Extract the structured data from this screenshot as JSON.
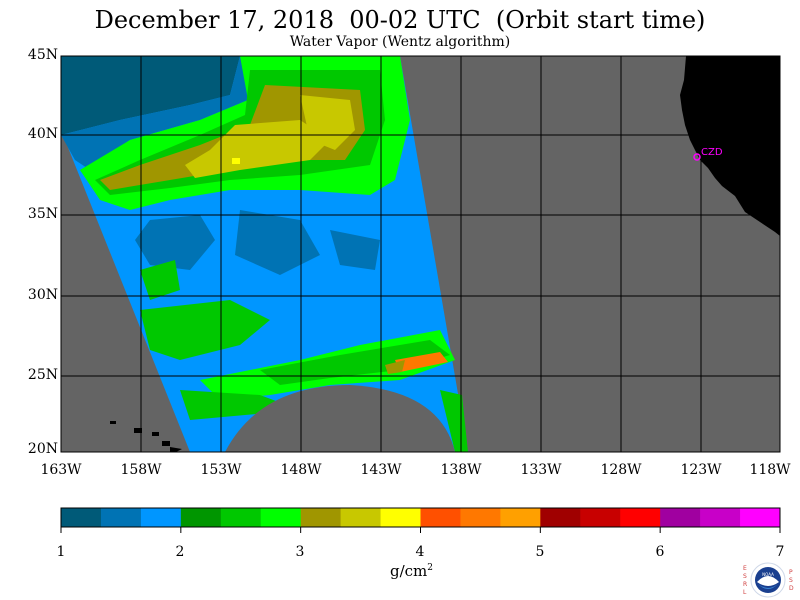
{
  "header": {
    "title": "December 17, 2018  00-02 UTC  (Orbit start time)",
    "subtitle": "Water Vapor (Wentz algorithm)"
  },
  "map": {
    "lat_labels": [
      "45N",
      "40N",
      "35N",
      "30N",
      "25N",
      "20N"
    ],
    "lon_labels": [
      "163W",
      "158W",
      "153W",
      "148W",
      "143W",
      "138W",
      "133W",
      "128W",
      "123W",
      "118W"
    ],
    "station_label": "CZD",
    "colors": {
      "land": "#000000",
      "no_data": "#646464",
      "grid": "#000000",
      "station": "#ff00ff"
    }
  },
  "colorbar": {
    "tick_labels": [
      "1",
      "2",
      "3",
      "4",
      "5",
      "6",
      "7"
    ],
    "units_prefix": "g/cm",
    "units_power": "2",
    "colors": [
      "#005a78",
      "#0073b4",
      "#0096ff",
      "#009600",
      "#00c800",
      "#00ff00",
      "#a09600",
      "#c8c800",
      "#ffff00",
      "#ff5000",
      "#ff7800",
      "#ffa000",
      "#a00000",
      "#c80000",
      "#ff0000",
      "#a000a0",
      "#c800c8",
      "#ff00ff"
    ]
  },
  "logo": {
    "left_letters": "ESRL",
    "right_letters": "PSD",
    "center_text": "NOAA"
  }
}
